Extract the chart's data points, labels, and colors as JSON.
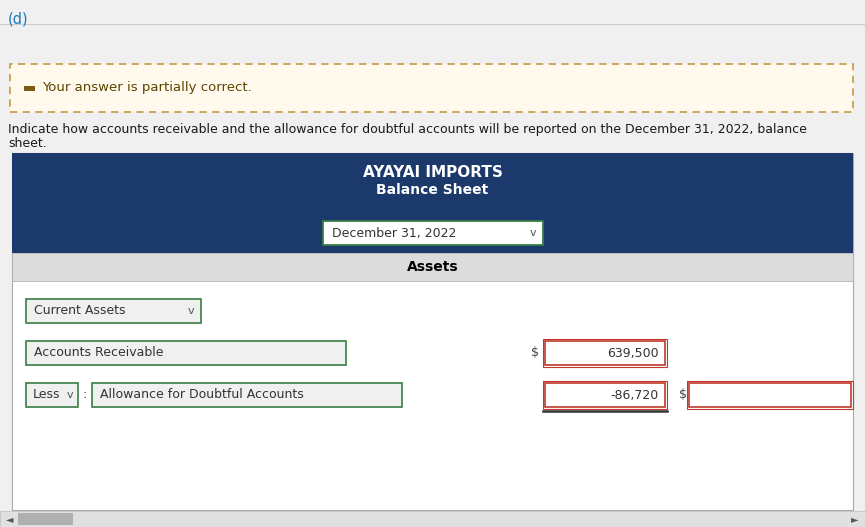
{
  "label_d": "(d)",
  "partial_correct_text": "Your answer is partially correct.",
  "instruction_line1": "Indicate how accounts receivable and the allowance for doubtful accounts will be reported on the December 31, 2022, balance",
  "instruction_line2": "sheet.",
  "company_name": "AYAYAI IMPORTS",
  "report_title": "Balance Sheet",
  "date_label": "December 31, 2022",
  "assets_label": "Assets",
  "current_assets_label": "Current Assets",
  "row1_label": "Accounts Receivable",
  "row1_value": "639,500",
  "row2_prefix": "Less",
  "row2_label": "Allowance for Doubtful Accounts",
  "row2_value": "-86,720",
  "header_bg": "#1b3a6b",
  "header_text_color": "#ffffff",
  "assets_bar_bg": "#dcdcdc",
  "assets_text_color": "#000000",
  "page_bg": "#f0f0f0",
  "table_bg": "#ffffff",
  "partial_bg": "#fffaed",
  "partial_border": "#c8a050",
  "partial_icon_color": "#7a5c14",
  "partial_text_color": "#5a4400",
  "box_bg": "#f0f0f0",
  "box_border_green": "#3a7d44",
  "box_border_red": "#c0392b",
  "instruction_color": "#1a1a1a",
  "dollar_sign_color": "#444444",
  "outer_border_color": "#aaaaaa",
  "label_d_color": "#1a7abf",
  "scrollbar_bg": "#e0e0e0",
  "scrollbar_thumb": "#b0b0b0"
}
